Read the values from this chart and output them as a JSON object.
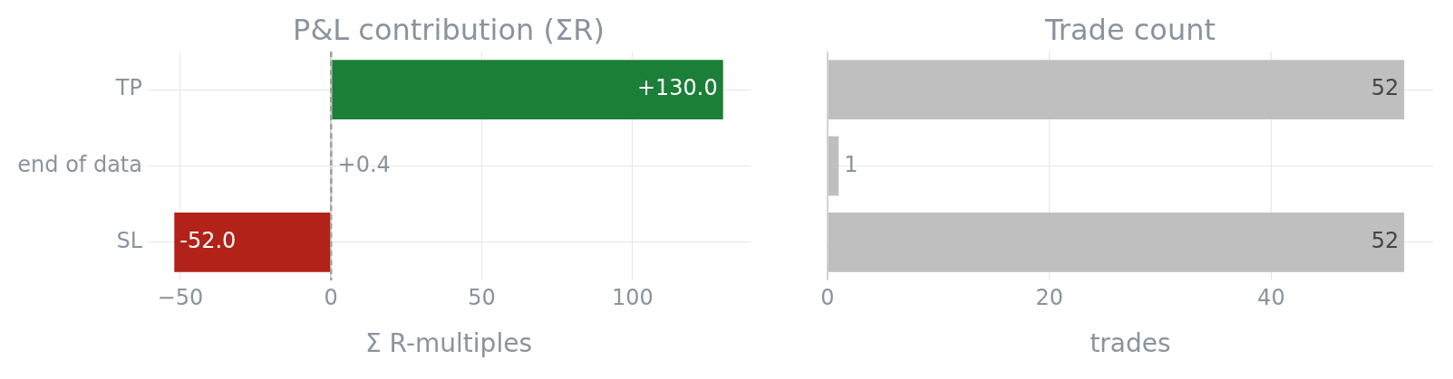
{
  "chart_data": [
    {
      "type": "bar",
      "orientation": "horizontal",
      "title": "P&L contribution (ΣR)",
      "xlabel": "Σ R-multiples",
      "categories": [
        "TP",
        "end of data",
        "SL"
      ],
      "values": [
        130.0,
        0.4,
        -52.0
      ],
      "colors": [
        "#1b7f37",
        "#95a5a6",
        "#b22218"
      ],
      "value_labels": [
        "+130.0",
        "+0.4",
        "-52.0"
      ],
      "xlim": [
        -61.1,
        139.1
      ],
      "xticks": [
        {
          "value": -50,
          "label": "−50"
        },
        0,
        50,
        100
      ],
      "grid": true,
      "ref_lines": [
        {
          "axis": "x",
          "value": 0,
          "color": "#a0a0a0",
          "line_style": "dashed"
        }
      ]
    },
    {
      "type": "bar",
      "orientation": "horizontal",
      "title": "Trade count",
      "xlabel": "trades",
      "categories": [
        null,
        null,
        null
      ],
      "values": [
        52,
        1,
        52
      ],
      "color": "#bfbfbf",
      "data_labels": true,
      "xlim": [
        0,
        54.6
      ],
      "xticks": [
        0,
        20,
        40
      ],
      "grid": true,
      "tick_labels": "x"
    }
  ]
}
